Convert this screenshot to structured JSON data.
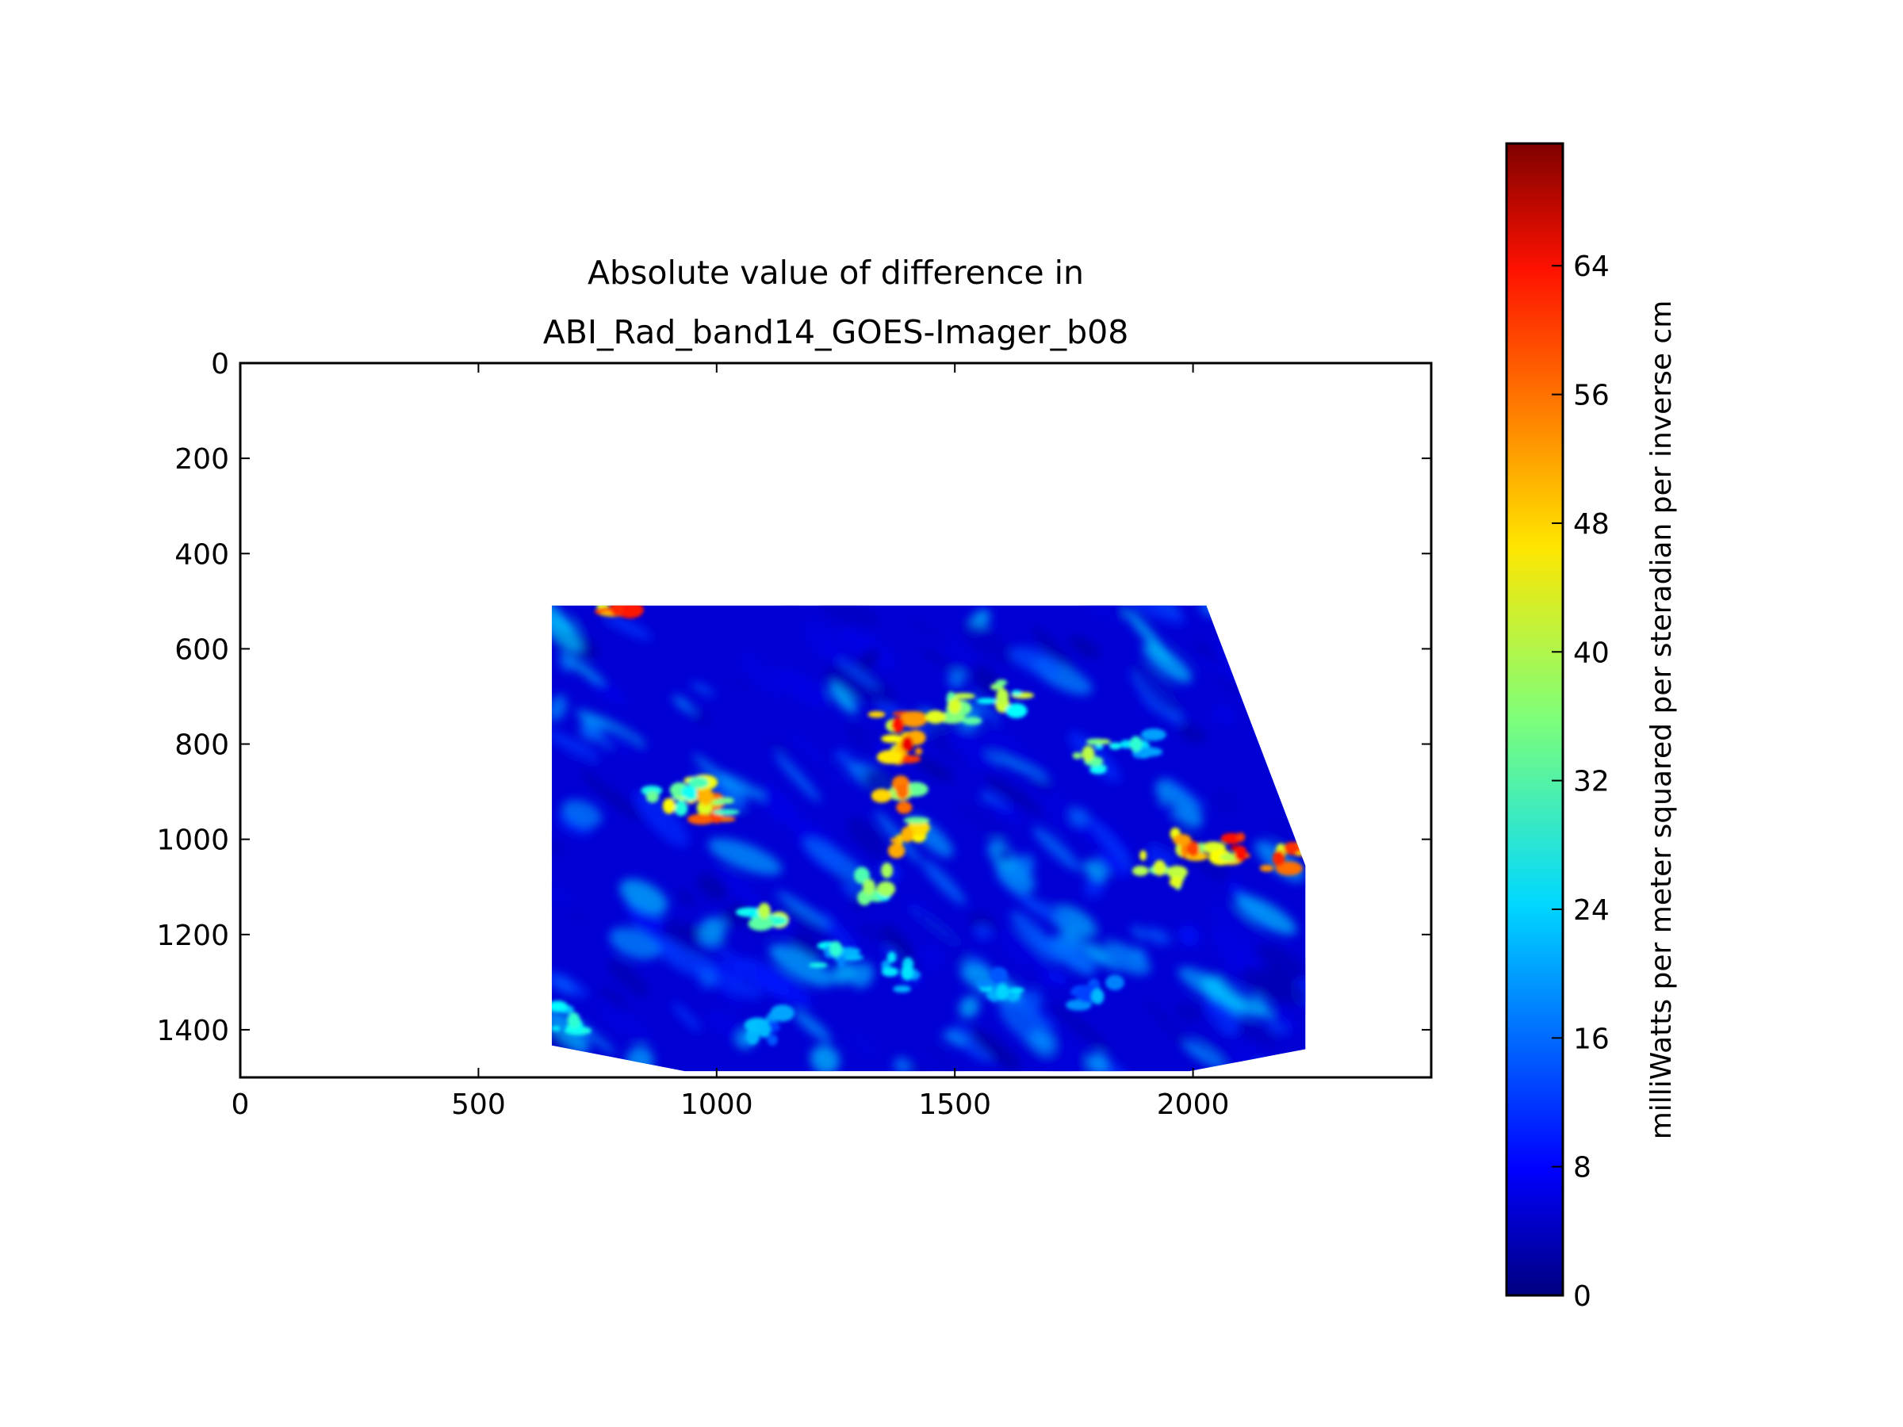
{
  "chart_data": {
    "type": "heatmap",
    "title": [
      "Absolute value of difference in",
      "ABI_Rad_band14_GOES-Imager_b08"
    ],
    "xlabel": "",
    "ylabel": "",
    "xlim": [
      0,
      2500
    ],
    "ylim": [
      1500,
      0
    ],
    "y_inverted": true,
    "xticks": [
      0,
      500,
      1000,
      1500,
      2000
    ],
    "yticks": [
      0,
      200,
      400,
      600,
      800,
      1000,
      1200,
      1400
    ],
    "grid": false,
    "colormap": "jet",
    "colorbar": {
      "label": "milliWatts per meter squared per steradian per inverse cm",
      "range": [
        0,
        71.6
      ],
      "ticks": [
        0,
        8,
        16,
        24,
        32,
        40,
        48,
        56,
        64
      ],
      "placement": "right"
    },
    "data_region": [
      [
        654,
        509
      ],
      [
        2028,
        509
      ],
      [
        2236,
        1055
      ],
      [
        2236,
        1441
      ],
      [
        1992,
        1487
      ],
      [
        933,
        1487
      ],
      [
        654,
        1433
      ]
    ],
    "background_value": 6,
    "features": [
      {
        "x": 1390,
        "y": 900,
        "value": 55
      },
      {
        "x": 1400,
        "y": 990,
        "value": 50
      },
      {
        "x": 1380,
        "y": 760,
        "value": 62
      },
      {
        "x": 1400,
        "y": 800,
        "value": 64
      },
      {
        "x": 1000,
        "y": 950,
        "value": 58
      },
      {
        "x": 980,
        "y": 910,
        "value": 50
      },
      {
        "x": 900,
        "y": 930,
        "value": 45
      },
      {
        "x": 1500,
        "y": 720,
        "value": 42
      },
      {
        "x": 1600,
        "y": 700,
        "value": 40
      },
      {
        "x": 1780,
        "y": 820,
        "value": 40
      },
      {
        "x": 1880,
        "y": 800,
        "value": 30
      },
      {
        "x": 2000,
        "y": 1020,
        "value": 58
      },
      {
        "x": 2100,
        "y": 1030,
        "value": 62
      },
      {
        "x": 2180,
        "y": 1040,
        "value": 60
      },
      {
        "x": 1930,
        "y": 1060,
        "value": 42
      },
      {
        "x": 1100,
        "y": 1150,
        "value": 40
      },
      {
        "x": 1320,
        "y": 1100,
        "value": 38
      },
      {
        "x": 1250,
        "y": 1230,
        "value": 30
      },
      {
        "x": 1400,
        "y": 1280,
        "value": 25
      },
      {
        "x": 1600,
        "y": 1320,
        "value": 24
      },
      {
        "x": 1800,
        "y": 1330,
        "value": 22
      },
      {
        "x": 700,
        "y": 1380,
        "value": 30
      },
      {
        "x": 1100,
        "y": 1400,
        "value": 22
      },
      {
        "x": 790,
        "y": 515,
        "value": 60
      }
    ]
  }
}
